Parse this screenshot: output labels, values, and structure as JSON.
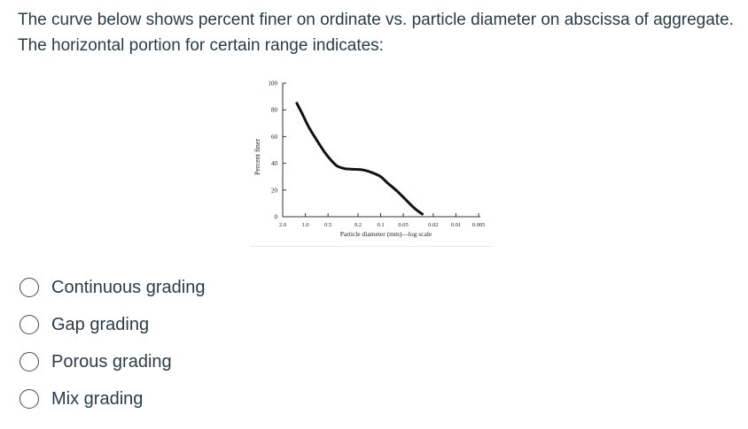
{
  "question": {
    "text": "The curve below shows percent finer on ordinate vs. particle diameter on abscissa of aggregate. The horizontal portion for certain range indicates:"
  },
  "chart_data": {
    "type": "line",
    "xlabel": "Particle diameter (mm)—log scale",
    "ylabel": "Percent finer",
    "x_ticks": [
      "2.0",
      "1.0",
      "0.5",
      "0.2",
      "0.1",
      "0.05",
      "0.02",
      "0.01",
      "0.005"
    ],
    "x_tick_values": [
      2.0,
      1.0,
      0.5,
      0.2,
      0.1,
      0.05,
      0.02,
      0.01,
      0.005
    ],
    "y_ticks": [
      "0",
      "20",
      "40",
      "60",
      "80",
      "100"
    ],
    "y_tick_values": [
      0,
      20,
      40,
      60,
      80,
      100
    ],
    "ylim": [
      0,
      100
    ],
    "x_scale": "log, reversed",
    "grid": false,
    "series": [
      {
        "x": [
          1.3,
          1.1,
          0.9,
          0.7,
          0.55,
          0.45,
          0.38,
          0.3,
          0.22,
          0.17,
          0.13,
          0.1,
          0.08,
          0.06,
          0.045,
          0.035,
          0.028
        ],
        "y": [
          85,
          77,
          67,
          57,
          48,
          42,
          38,
          36,
          35.5,
          35,
          33,
          30,
          25,
          19,
          12,
          6,
          2
        ]
      }
    ]
  },
  "options": [
    {
      "label": "Continuous grading"
    },
    {
      "label": "Gap grading"
    },
    {
      "label": "Porous grading"
    },
    {
      "label": "Mix grading"
    }
  ]
}
